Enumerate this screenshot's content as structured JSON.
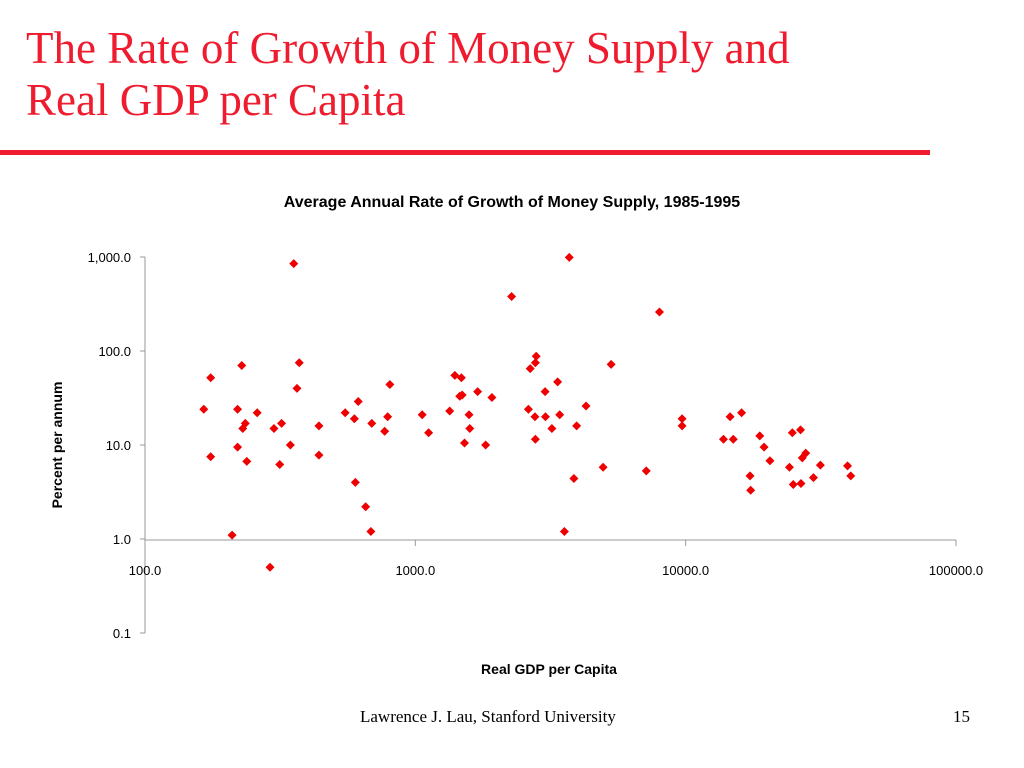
{
  "slide": {
    "title_line1": "The Rate of Growth of Money Supply and",
    "title_line2": "Real GDP per Capita",
    "footer_author": "Lawrence J. Lau, Stanford University",
    "page_number": "15"
  },
  "colors": {
    "accent": "#ee1c2e",
    "marker": "#ee0000"
  },
  "chart_data": {
    "type": "scatter",
    "title": "Average Annual Rate of Growth of Money Supply, 1985-1995",
    "xlabel": "Real GDP per Capita",
    "ylabel": "Percent per annum",
    "x_scale": "log",
    "y_scale": "log",
    "xlim": [
      100,
      100000
    ],
    "ylim": [
      0.1,
      1000
    ],
    "x_ticks": [
      100,
      1000,
      10000,
      100000
    ],
    "x_tick_labels": [
      "100.0",
      "1000.0",
      "10000.0",
      "100000.0"
    ],
    "y_ticks": [
      0.1,
      1,
      10,
      100,
      1000
    ],
    "y_tick_labels": [
      "0.1",
      "1.0",
      "10.0",
      "100.0",
      "1,000.0"
    ],
    "grid": false,
    "legend": "none",
    "marker": "diamond",
    "points": [
      [
        165,
        24
      ],
      [
        175,
        52
      ],
      [
        175,
        7.5
      ],
      [
        210,
        1.1
      ],
      [
        220,
        24
      ],
      [
        220,
        9.5
      ],
      [
        228,
        70
      ],
      [
        230,
        15
      ],
      [
        235,
        17
      ],
      [
        238,
        6.7
      ],
      [
        260,
        22
      ],
      [
        290,
        0.5
      ],
      [
        300,
        15
      ],
      [
        315,
        6.2
      ],
      [
        320,
        17
      ],
      [
        345,
        10
      ],
      [
        355,
        850
      ],
      [
        365,
        40
      ],
      [
        372,
        75
      ],
      [
        440,
        16
      ],
      [
        440,
        7.8
      ],
      [
        550,
        22
      ],
      [
        595,
        19
      ],
      [
        600,
        4.0
      ],
      [
        615,
        29
      ],
      [
        655,
        2.2
      ],
      [
        685,
        1.2
      ],
      [
        690,
        17
      ],
      [
        770,
        14
      ],
      [
        790,
        20
      ],
      [
        805,
        44
      ],
      [
        1060,
        21
      ],
      [
        1120,
        13.5
      ],
      [
        1340,
        23
      ],
      [
        1400,
        55
      ],
      [
        1460,
        33
      ],
      [
        1480,
        52
      ],
      [
        1490,
        34
      ],
      [
        1520,
        10.5
      ],
      [
        1580,
        21
      ],
      [
        1590,
        15
      ],
      [
        1700,
        37
      ],
      [
        1820,
        10
      ],
      [
        1920,
        32
      ],
      [
        2270,
        380
      ],
      [
        2620,
        24
      ],
      [
        2660,
        65
      ],
      [
        2770,
        20
      ],
      [
        2780,
        11.5
      ],
      [
        2780,
        75
      ],
      [
        2800,
        88
      ],
      [
        3020,
        37
      ],
      [
        3030,
        20
      ],
      [
        3200,
        15
      ],
      [
        3360,
        47
      ],
      [
        3420,
        21
      ],
      [
        3560,
        1.2
      ],
      [
        3710,
        990
      ],
      [
        3860,
        4.4
      ],
      [
        3950,
        16
      ],
      [
        4280,
        26
      ],
      [
        4950,
        5.8
      ],
      [
        5300,
        72
      ],
      [
        7150,
        5.3
      ],
      [
        8000,
        260
      ],
      [
        9700,
        19
      ],
      [
        9700,
        16
      ],
      [
        13800,
        11.5
      ],
      [
        14600,
        20
      ],
      [
        15000,
        11.5
      ],
      [
        16100,
        22
      ],
      [
        17300,
        4.7
      ],
      [
        17400,
        3.3
      ],
      [
        18800,
        12.5
      ],
      [
        19500,
        9.5
      ],
      [
        20500,
        6.8
      ],
      [
        24200,
        5.8
      ],
      [
        24800,
        13.5
      ],
      [
        25000,
        3.8
      ],
      [
        26600,
        14.5
      ],
      [
        26700,
        3.9
      ],
      [
        27000,
        7.3
      ],
      [
        27800,
        8.2
      ],
      [
        29700,
        4.5
      ],
      [
        31500,
        6.1
      ],
      [
        39700,
        6.0
      ],
      [
        40800,
        4.7
      ]
    ]
  }
}
